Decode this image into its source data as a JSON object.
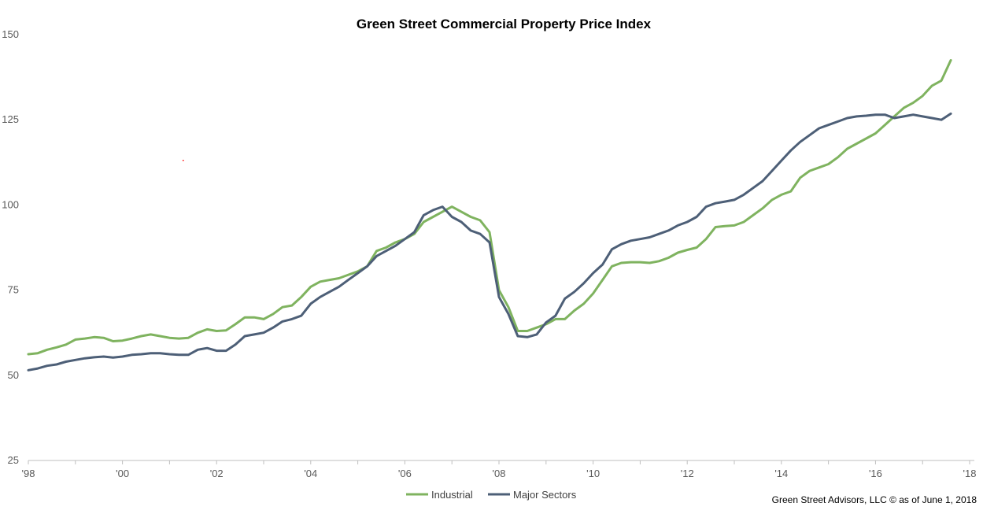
{
  "chart_data": {
    "type": "line",
    "title": "Green Street Commercial Property Price Index",
    "xlabel": "",
    "ylabel": "",
    "ylim": [
      25,
      150
    ],
    "yticks": [
      "25",
      "50",
      "75",
      "100",
      "125",
      "150"
    ],
    "xlim": [
      1998,
      2018.1
    ],
    "xticks": [
      {
        "value": 1998,
        "label": "'98"
      },
      {
        "value": 2000,
        "label": "'00"
      },
      {
        "value": 2002,
        "label": "'02"
      },
      {
        "value": 2004,
        "label": "'04"
      },
      {
        "value": 2006,
        "label": "'06"
      },
      {
        "value": 2008,
        "label": "'08"
      },
      {
        "value": 2010,
        "label": "'10"
      },
      {
        "value": 2012,
        "label": "'12"
      },
      {
        "value": 2014,
        "label": "'14"
      },
      {
        "value": 2016,
        "label": "'16"
      },
      {
        "value": 2018,
        "label": "'18"
      }
    ],
    "grid": false,
    "legend_position": "bottom",
    "series": [
      {
        "name": "Industrial",
        "color": "#7fb35f",
        "points": [
          [
            1998.0,
            56.2
          ],
          [
            1998.2,
            56.5
          ],
          [
            1998.4,
            57.5
          ],
          [
            1998.6,
            58.2
          ],
          [
            1998.8,
            59.0
          ],
          [
            1999.0,
            60.5
          ],
          [
            1999.2,
            60.8
          ],
          [
            1999.4,
            61.2
          ],
          [
            1999.6,
            61.0
          ],
          [
            1999.8,
            60.0
          ],
          [
            2000.0,
            60.2
          ],
          [
            2000.2,
            60.8
          ],
          [
            2000.4,
            61.5
          ],
          [
            2000.6,
            62.0
          ],
          [
            2000.8,
            61.5
          ],
          [
            2001.0,
            61.0
          ],
          [
            2001.2,
            60.8
          ],
          [
            2001.4,
            61.0
          ],
          [
            2001.6,
            62.5
          ],
          [
            2001.8,
            63.5
          ],
          [
            2002.0,
            63.0
          ],
          [
            2002.2,
            63.2
          ],
          [
            2002.4,
            65.0
          ],
          [
            2002.6,
            67.0
          ],
          [
            2002.8,
            67.0
          ],
          [
            2003.0,
            66.5
          ],
          [
            2003.2,
            68.0
          ],
          [
            2003.4,
            70.0
          ],
          [
            2003.6,
            70.5
          ],
          [
            2003.8,
            73.0
          ],
          [
            2004.0,
            76.0
          ],
          [
            2004.2,
            77.5
          ],
          [
            2004.4,
            78.0
          ],
          [
            2004.6,
            78.5
          ],
          [
            2004.8,
            79.5
          ],
          [
            2005.0,
            80.5
          ],
          [
            2005.2,
            82.0
          ],
          [
            2005.4,
            86.5
          ],
          [
            2005.6,
            87.5
          ],
          [
            2005.8,
            89.0
          ],
          [
            2006.0,
            90.0
          ],
          [
            2006.2,
            91.5
          ],
          [
            2006.4,
            95.0
          ],
          [
            2006.6,
            96.5
          ],
          [
            2006.8,
            98.0
          ],
          [
            2007.0,
            99.5
          ],
          [
            2007.2,
            98.0
          ],
          [
            2007.4,
            96.5
          ],
          [
            2007.6,
            95.5
          ],
          [
            2007.8,
            92.0
          ],
          [
            2008.0,
            75.0
          ],
          [
            2008.2,
            70.0
          ],
          [
            2008.4,
            63.0
          ],
          [
            2008.6,
            63.0
          ],
          [
            2008.8,
            64.0
          ],
          [
            2009.0,
            65.0
          ],
          [
            2009.2,
            66.5
          ],
          [
            2009.4,
            66.5
          ],
          [
            2009.6,
            69.0
          ],
          [
            2009.8,
            71.0
          ],
          [
            2010.0,
            74.0
          ],
          [
            2010.2,
            78.0
          ],
          [
            2010.4,
            82.0
          ],
          [
            2010.6,
            83.0
          ],
          [
            2010.8,
            83.2
          ],
          [
            2011.0,
            83.2
          ],
          [
            2011.2,
            83.0
          ],
          [
            2011.4,
            83.5
          ],
          [
            2011.6,
            84.5
          ],
          [
            2011.8,
            86.0
          ],
          [
            2012.0,
            86.8
          ],
          [
            2012.2,
            87.5
          ],
          [
            2012.4,
            90.0
          ],
          [
            2012.6,
            93.5
          ],
          [
            2012.8,
            93.8
          ],
          [
            2013.0,
            94.0
          ],
          [
            2013.2,
            95.0
          ],
          [
            2013.4,
            97.0
          ],
          [
            2013.6,
            99.0
          ],
          [
            2013.8,
            101.5
          ],
          [
            2014.0,
            103.0
          ],
          [
            2014.2,
            104.0
          ],
          [
            2014.4,
            108.0
          ],
          [
            2014.6,
            110.0
          ],
          [
            2014.8,
            111.0
          ],
          [
            2015.0,
            112.0
          ],
          [
            2015.2,
            114.0
          ],
          [
            2015.4,
            116.5
          ],
          [
            2015.6,
            118.0
          ],
          [
            2015.8,
            119.5
          ],
          [
            2016.0,
            121.0
          ],
          [
            2016.2,
            123.5
          ],
          [
            2016.4,
            126.0
          ],
          [
            2016.6,
            128.5
          ],
          [
            2016.8,
            130.0
          ],
          [
            2017.0,
            132.0
          ],
          [
            2017.2,
            135.0
          ],
          [
            2017.4,
            136.5
          ],
          [
            2017.6,
            142.5
          ]
        ]
      },
      {
        "name": "Major Sectors",
        "color": "#4d5f77",
        "points": [
          [
            1998.0,
            51.5
          ],
          [
            1998.2,
            52.0
          ],
          [
            1998.4,
            52.8
          ],
          [
            1998.6,
            53.2
          ],
          [
            1998.8,
            54.0
          ],
          [
            1999.0,
            54.5
          ],
          [
            1999.2,
            55.0
          ],
          [
            1999.4,
            55.3
          ],
          [
            1999.6,
            55.5
          ],
          [
            1999.8,
            55.2
          ],
          [
            2000.0,
            55.5
          ],
          [
            2000.2,
            56.0
          ],
          [
            2000.4,
            56.2
          ],
          [
            2000.6,
            56.5
          ],
          [
            2000.8,
            56.5
          ],
          [
            2001.0,
            56.2
          ],
          [
            2001.2,
            56.0
          ],
          [
            2001.4,
            56.0
          ],
          [
            2001.6,
            57.5
          ],
          [
            2001.8,
            58.0
          ],
          [
            2002.0,
            57.2
          ],
          [
            2002.2,
            57.2
          ],
          [
            2002.4,
            59.0
          ],
          [
            2002.6,
            61.5
          ],
          [
            2002.8,
            62.0
          ],
          [
            2003.0,
            62.5
          ],
          [
            2003.2,
            64.0
          ],
          [
            2003.4,
            65.8
          ],
          [
            2003.6,
            66.5
          ],
          [
            2003.8,
            67.5
          ],
          [
            2004.0,
            71.0
          ],
          [
            2004.2,
            73.0
          ],
          [
            2004.4,
            74.5
          ],
          [
            2004.6,
            76.0
          ],
          [
            2004.8,
            78.0
          ],
          [
            2005.0,
            80.0
          ],
          [
            2005.2,
            82.0
          ],
          [
            2005.4,
            85.0
          ],
          [
            2005.6,
            86.5
          ],
          [
            2005.8,
            88.0
          ],
          [
            2006.0,
            90.0
          ],
          [
            2006.2,
            92.0
          ],
          [
            2006.4,
            97.0
          ],
          [
            2006.6,
            98.5
          ],
          [
            2006.8,
            99.5
          ],
          [
            2007.0,
            96.5
          ],
          [
            2007.2,
            95.0
          ],
          [
            2007.4,
            92.5
          ],
          [
            2007.6,
            91.5
          ],
          [
            2007.8,
            89.0
          ],
          [
            2008.0,
            73.0
          ],
          [
            2008.2,
            68.0
          ],
          [
            2008.4,
            61.5
          ],
          [
            2008.6,
            61.2
          ],
          [
            2008.8,
            62.0
          ],
          [
            2009.0,
            65.5
          ],
          [
            2009.2,
            67.5
          ],
          [
            2009.4,
            72.5
          ],
          [
            2009.6,
            74.5
          ],
          [
            2009.8,
            77.0
          ],
          [
            2010.0,
            80.0
          ],
          [
            2010.2,
            82.5
          ],
          [
            2010.4,
            87.0
          ],
          [
            2010.6,
            88.5
          ],
          [
            2010.8,
            89.5
          ],
          [
            2011.0,
            90.0
          ],
          [
            2011.2,
            90.5
          ],
          [
            2011.4,
            91.5
          ],
          [
            2011.6,
            92.5
          ],
          [
            2011.8,
            94.0
          ],
          [
            2012.0,
            95.0
          ],
          [
            2012.2,
            96.5
          ],
          [
            2012.4,
            99.5
          ],
          [
            2012.6,
            100.5
          ],
          [
            2012.8,
            101.0
          ],
          [
            2013.0,
            101.5
          ],
          [
            2013.2,
            103.0
          ],
          [
            2013.4,
            105.0
          ],
          [
            2013.6,
            107.0
          ],
          [
            2013.8,
            110.0
          ],
          [
            2014.0,
            113.0
          ],
          [
            2014.2,
            116.0
          ],
          [
            2014.4,
            118.5
          ],
          [
            2014.6,
            120.5
          ],
          [
            2014.8,
            122.5
          ],
          [
            2015.0,
            123.5
          ],
          [
            2015.2,
            124.5
          ],
          [
            2015.4,
            125.5
          ],
          [
            2015.6,
            126.0
          ],
          [
            2015.8,
            126.2
          ],
          [
            2016.0,
            126.5
          ],
          [
            2016.2,
            126.5
          ],
          [
            2016.4,
            125.5
          ],
          [
            2016.6,
            126.0
          ],
          [
            2016.8,
            126.5
          ],
          [
            2017.0,
            126.0
          ],
          [
            2017.2,
            125.5
          ],
          [
            2017.4,
            125.0
          ],
          [
            2017.6,
            126.8
          ]
        ]
      }
    ]
  },
  "source_note": "Green Street Advisors, LLC © as of June 1, 2018",
  "stray_mark_color": "#ff0000"
}
